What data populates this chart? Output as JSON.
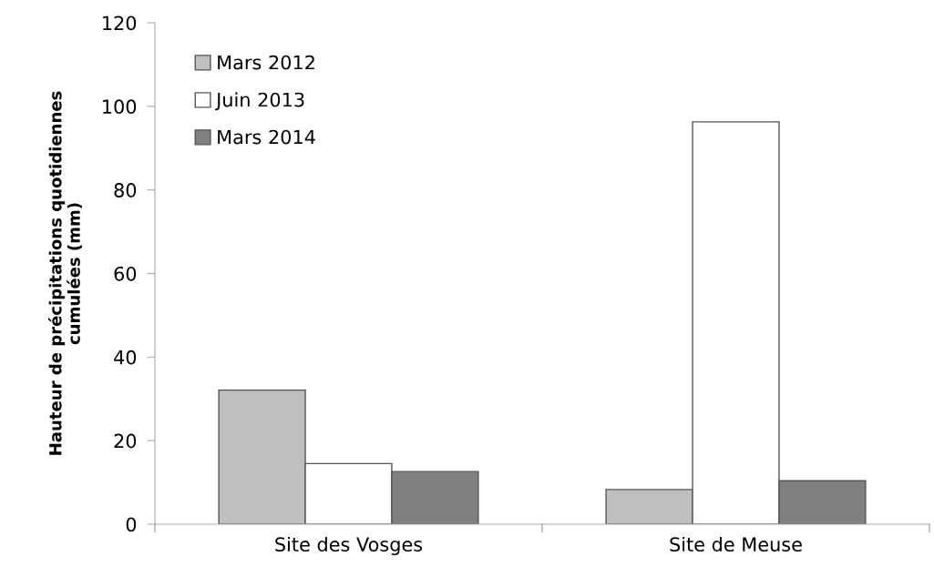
{
  "chart_data": {
    "type": "bar",
    "ylabel": "Hauteur de précipitations quotidiennes\ncumulées (mm)",
    "categories": [
      "Site des Vosges",
      "Site de Meuse"
    ],
    "series": [
      {
        "name": "Mars 2012",
        "color": "#bfbfbf",
        "values": [
          32.1,
          8.3
        ]
      },
      {
        "name": "Juin 2013",
        "color": "#ffffff",
        "values": [
          14.5,
          96.3
        ]
      },
      {
        "name": "Mars 2014",
        "color": "#808080",
        "values": [
          12.6,
          10.4
        ]
      }
    ],
    "ylim": [
      0,
      120
    ],
    "yticks": [
      0,
      20,
      40,
      60,
      80,
      100,
      120
    ],
    "grid": false,
    "legend": "top left"
  }
}
